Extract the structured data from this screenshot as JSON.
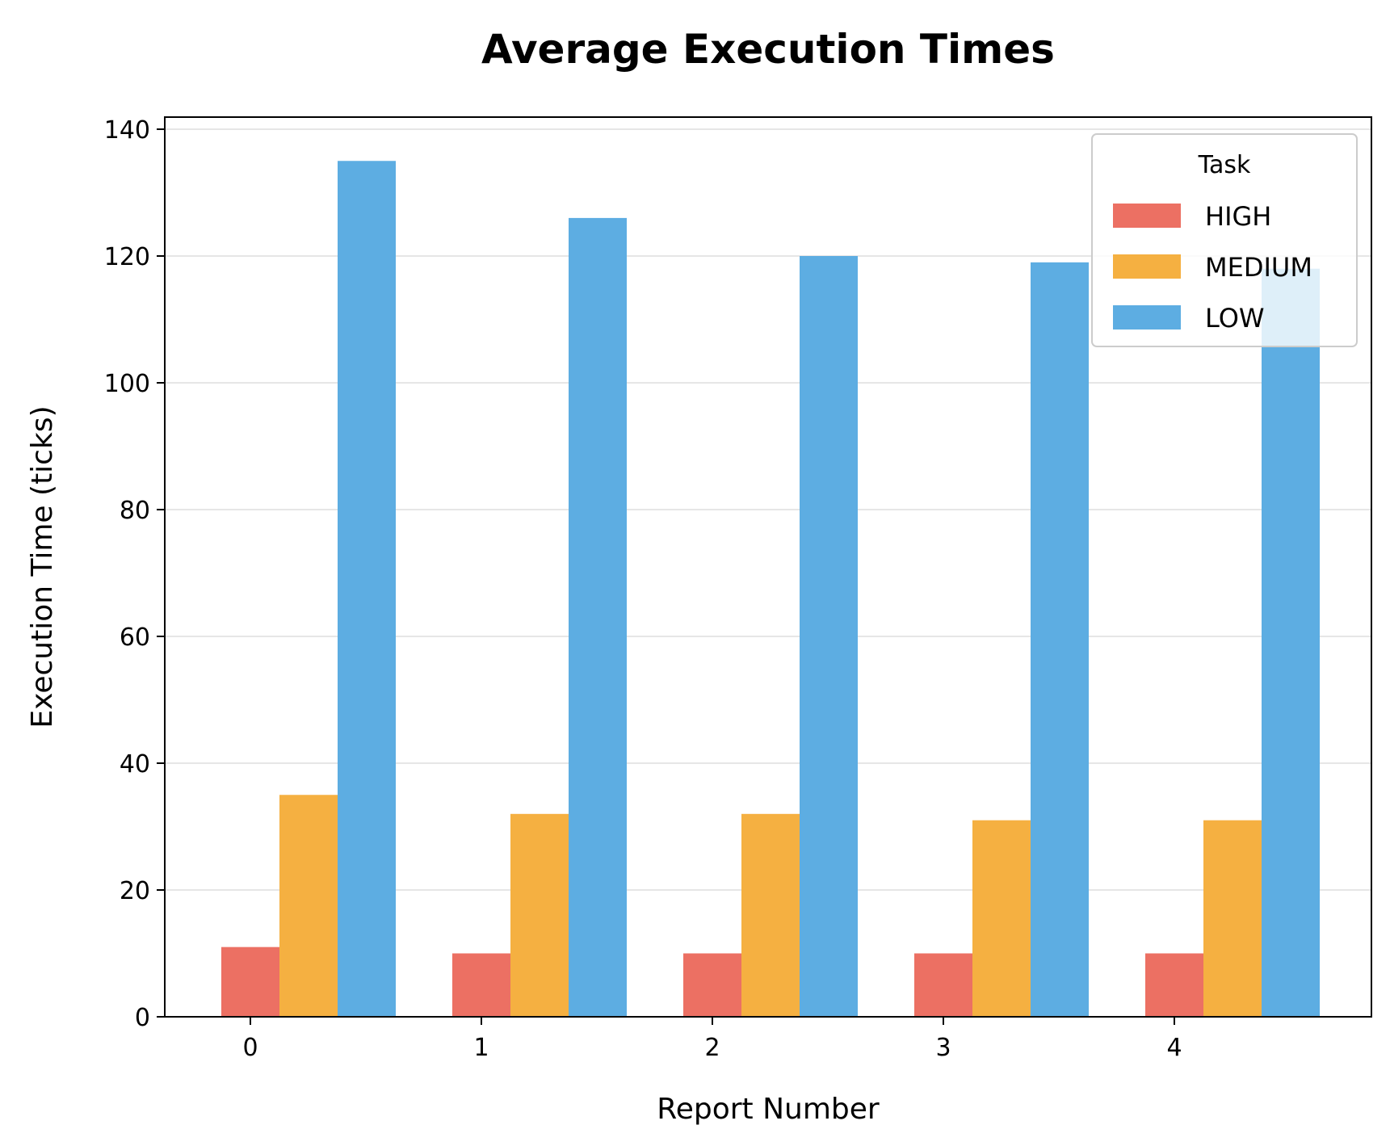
{
  "chart_data": {
    "type": "bar",
    "title": "Average Execution Times",
    "xlabel": "Report Number",
    "ylabel": "Execution Time (ticks)",
    "categories": [
      "0",
      "1",
      "2",
      "3",
      "4"
    ],
    "series": [
      {
        "name": "HIGH",
        "color": "#ec7063",
        "values": [
          11,
          10,
          10,
          10,
          10
        ]
      },
      {
        "name": "MEDIUM",
        "color": "#f5b041",
        "values": [
          35,
          32,
          32,
          31,
          31
        ]
      },
      {
        "name": "LOW",
        "color": "#5dade2",
        "values": [
          135,
          126,
          120,
          119,
          118
        ]
      }
    ],
    "ylim": [
      0,
      142
    ],
    "yticks": [
      0,
      20,
      40,
      60,
      80,
      100,
      120,
      140
    ],
    "grid": "horizontal",
    "legend": {
      "title": "Task",
      "placement": "top-right"
    }
  }
}
